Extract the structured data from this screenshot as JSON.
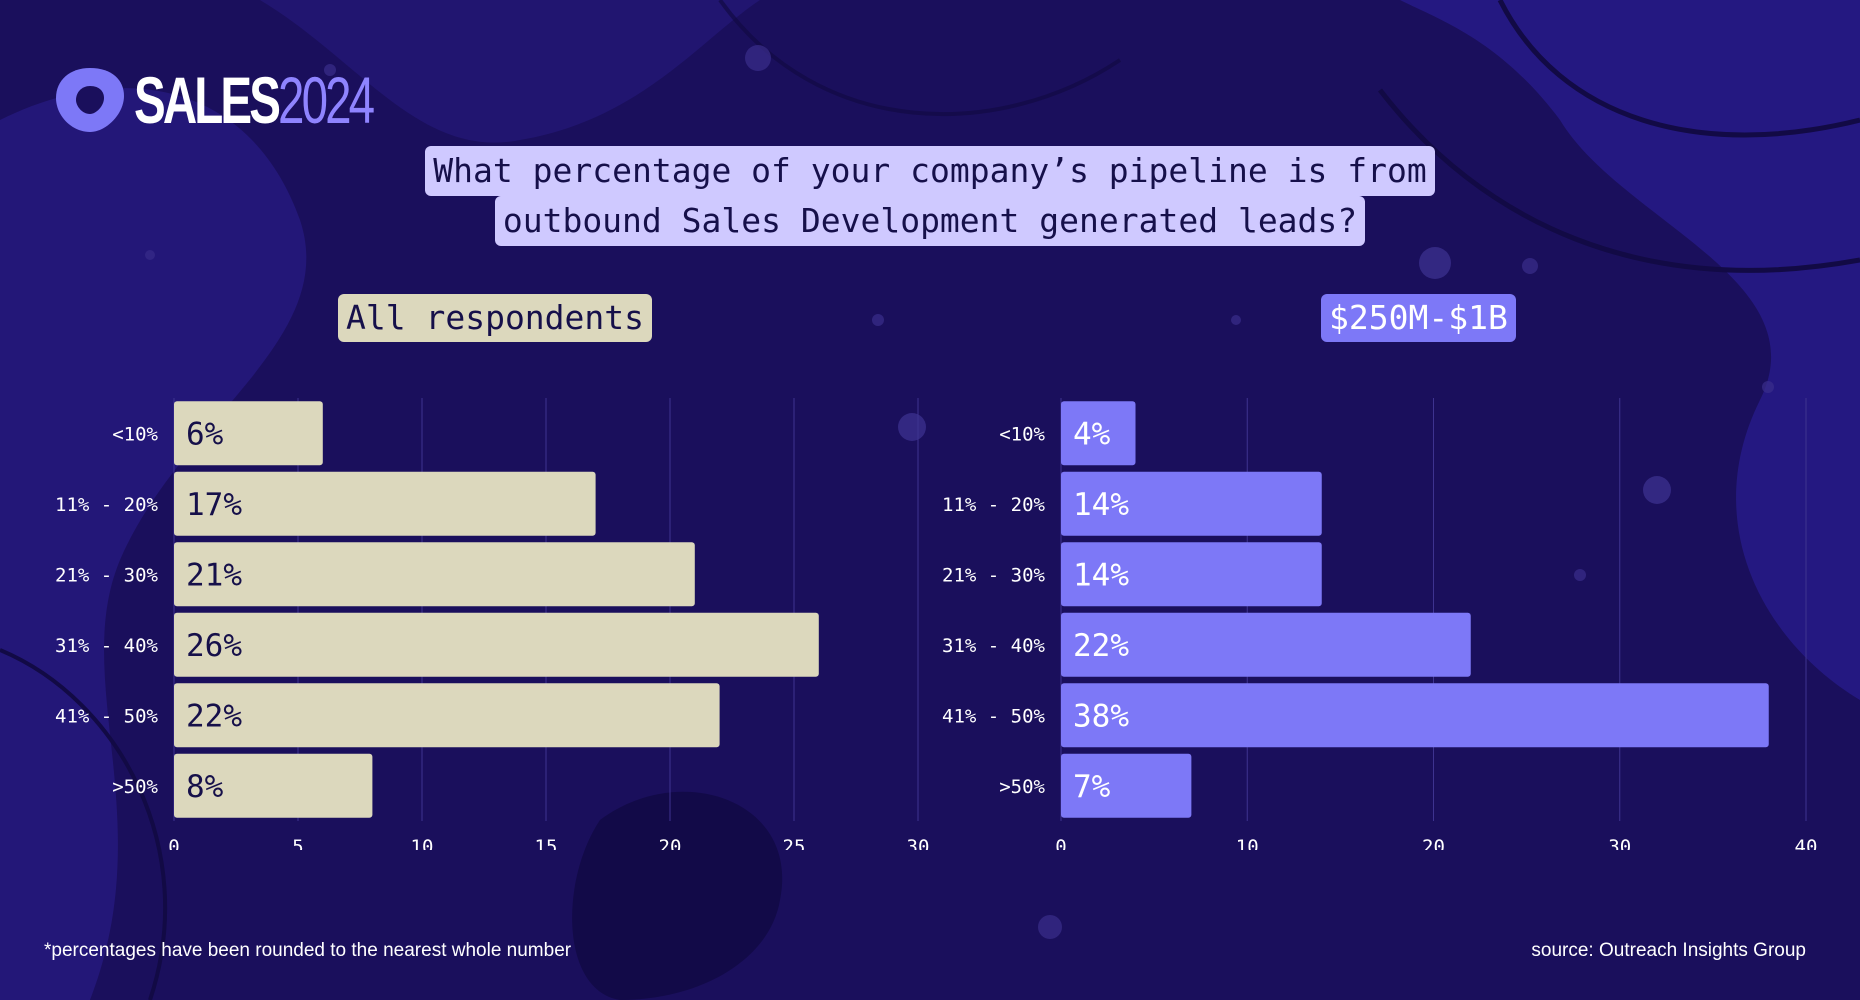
{
  "brand": {
    "word": "SALES",
    "year": "2024"
  },
  "question": {
    "line1": "What percentage of your company’s pipeline is from",
    "line2": "outbound Sales Development generated leads?"
  },
  "colors": {
    "background": "#1a0f5c",
    "left_bars": "#dcd8bd",
    "right_bars": "#7d78f7",
    "question_bg": "#cfc9ff"
  },
  "footnote": "*percentages have been rounded to the nearest whole number",
  "source": "source: Outreach Insights Group",
  "chart_data": [
    {
      "type": "bar",
      "orientation": "horizontal",
      "title": "All respondents",
      "categories": [
        "<10%",
        "11% - 20%",
        "21% - 30%",
        "31% - 40%",
        "41% - 50%",
        ">50%"
      ],
      "values": [
        6,
        17,
        21,
        26,
        22,
        8
      ],
      "data_labels": [
        "6%",
        "17%",
        "21%",
        "26%",
        "22%",
        "8%"
      ],
      "xlim": [
        0,
        30
      ],
      "xticks": [
        "0",
        "5",
        "10",
        "15",
        "20",
        "25",
        "30"
      ],
      "grid": true,
      "bar_color": "#dcd8bd",
      "label_color": "#16104a"
    },
    {
      "type": "bar",
      "orientation": "horizontal",
      "title": "$250M-$1B",
      "categories": [
        "<10%",
        "11% - 20%",
        "21% - 30%",
        "31% - 40%",
        "41% - 50%",
        ">50%"
      ],
      "values": [
        4,
        14,
        14,
        22,
        38,
        7
      ],
      "data_labels": [
        "4%",
        "14%",
        "14%",
        "22%",
        "38%",
        "7%"
      ],
      "xlim": [
        0,
        40
      ],
      "xticks": [
        "0",
        "10",
        "20",
        "30",
        "40"
      ],
      "grid": true,
      "bar_color": "#7d78f7",
      "label_color": "#ffffff"
    }
  ]
}
